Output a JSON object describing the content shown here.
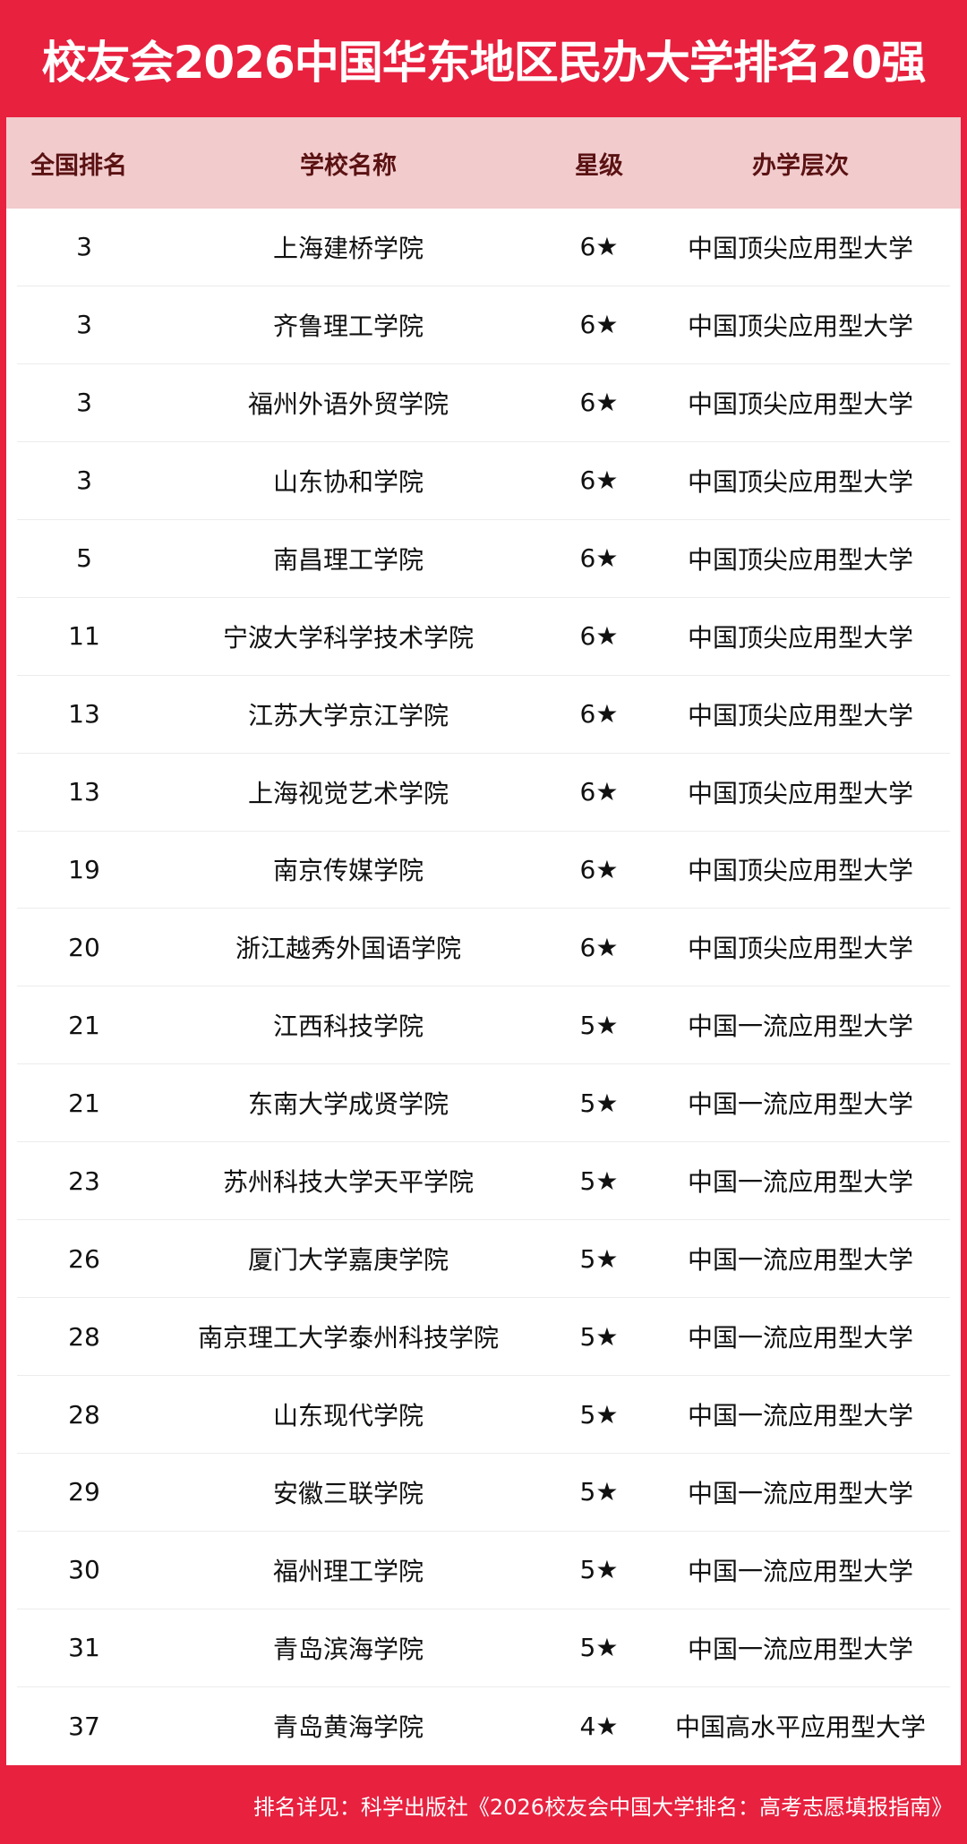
{
  "title": "校友会2026中国华东地区民办大学排名20强",
  "headers": [
    "全国排名",
    "学校名称",
    "星级",
    "办学层次"
  ],
  "rows": [
    [
      "3",
      "上海建桥学院",
      "6★",
      "中国顶尖应用型大学"
    ],
    [
      "3",
      "齐鲁理工学院",
      "6★",
      "中国顶尖应用型大学"
    ],
    [
      "3",
      "福州外语外贸学院",
      "6★",
      "中国顶尖应用型大学"
    ],
    [
      "3",
      "山东协和学院",
      "6★",
      "中国顶尖应用型大学"
    ],
    [
      "5",
      "南昌理工学院",
      "6★",
      "中国顶尖应用型大学"
    ],
    [
      "11",
      "宁波大学科学技术学院",
      "6★",
      "中国顶尖应用型大学"
    ],
    [
      "13",
      "江苏大学京江学院",
      "6★",
      "中国顶尖应用型大学"
    ],
    [
      "13",
      "上海视觉艺术学院",
      "6★",
      "中国顶尖应用型大学"
    ],
    [
      "19",
      "南京传媒学院",
      "6★",
      "中国顶尖应用型大学"
    ],
    [
      "20",
      "浙江越秀外国语学院",
      "6★",
      "中国顶尖应用型大学"
    ],
    [
      "21",
      "江西科技学院",
      "5★",
      "中国一流应用型大学"
    ],
    [
      "21",
      "东南大学成贤学院",
      "5★",
      "中国一流应用型大学"
    ],
    [
      "23",
      "苏州科技大学天平学院",
      "5★",
      "中国一流应用型大学"
    ],
    [
      "26",
      "厦门大学嘉庚学院",
      "5★",
      "中国一流应用型大学"
    ],
    [
      "28",
      "南京理工大学泰州科技学院",
      "5★",
      "中国一流应用型大学"
    ],
    [
      "28",
      "山东现代学院",
      "5★",
      "中国一流应用型大学"
    ],
    [
      "29",
      "安徽三联学院",
      "5★",
      "中国一流应用型大学"
    ],
    [
      "30",
      "福州理工学院",
      "5★",
      "中国一流应用型大学"
    ],
    [
      "31",
      "青岛滨海学院",
      "5★",
      "中国一流应用型大学"
    ],
    [
      "37",
      "青岛黄海学院",
      "4★",
      "中国高水平应用型大学"
    ]
  ],
  "footer": "排名详见：科学出版社《2026校友会中国大学排名：高考志愿填报指南》",
  "colors": {
    "brand_red": "#e8213f",
    "header_bg": "#f2cbcd",
    "header_text": "#5a1212"
  }
}
